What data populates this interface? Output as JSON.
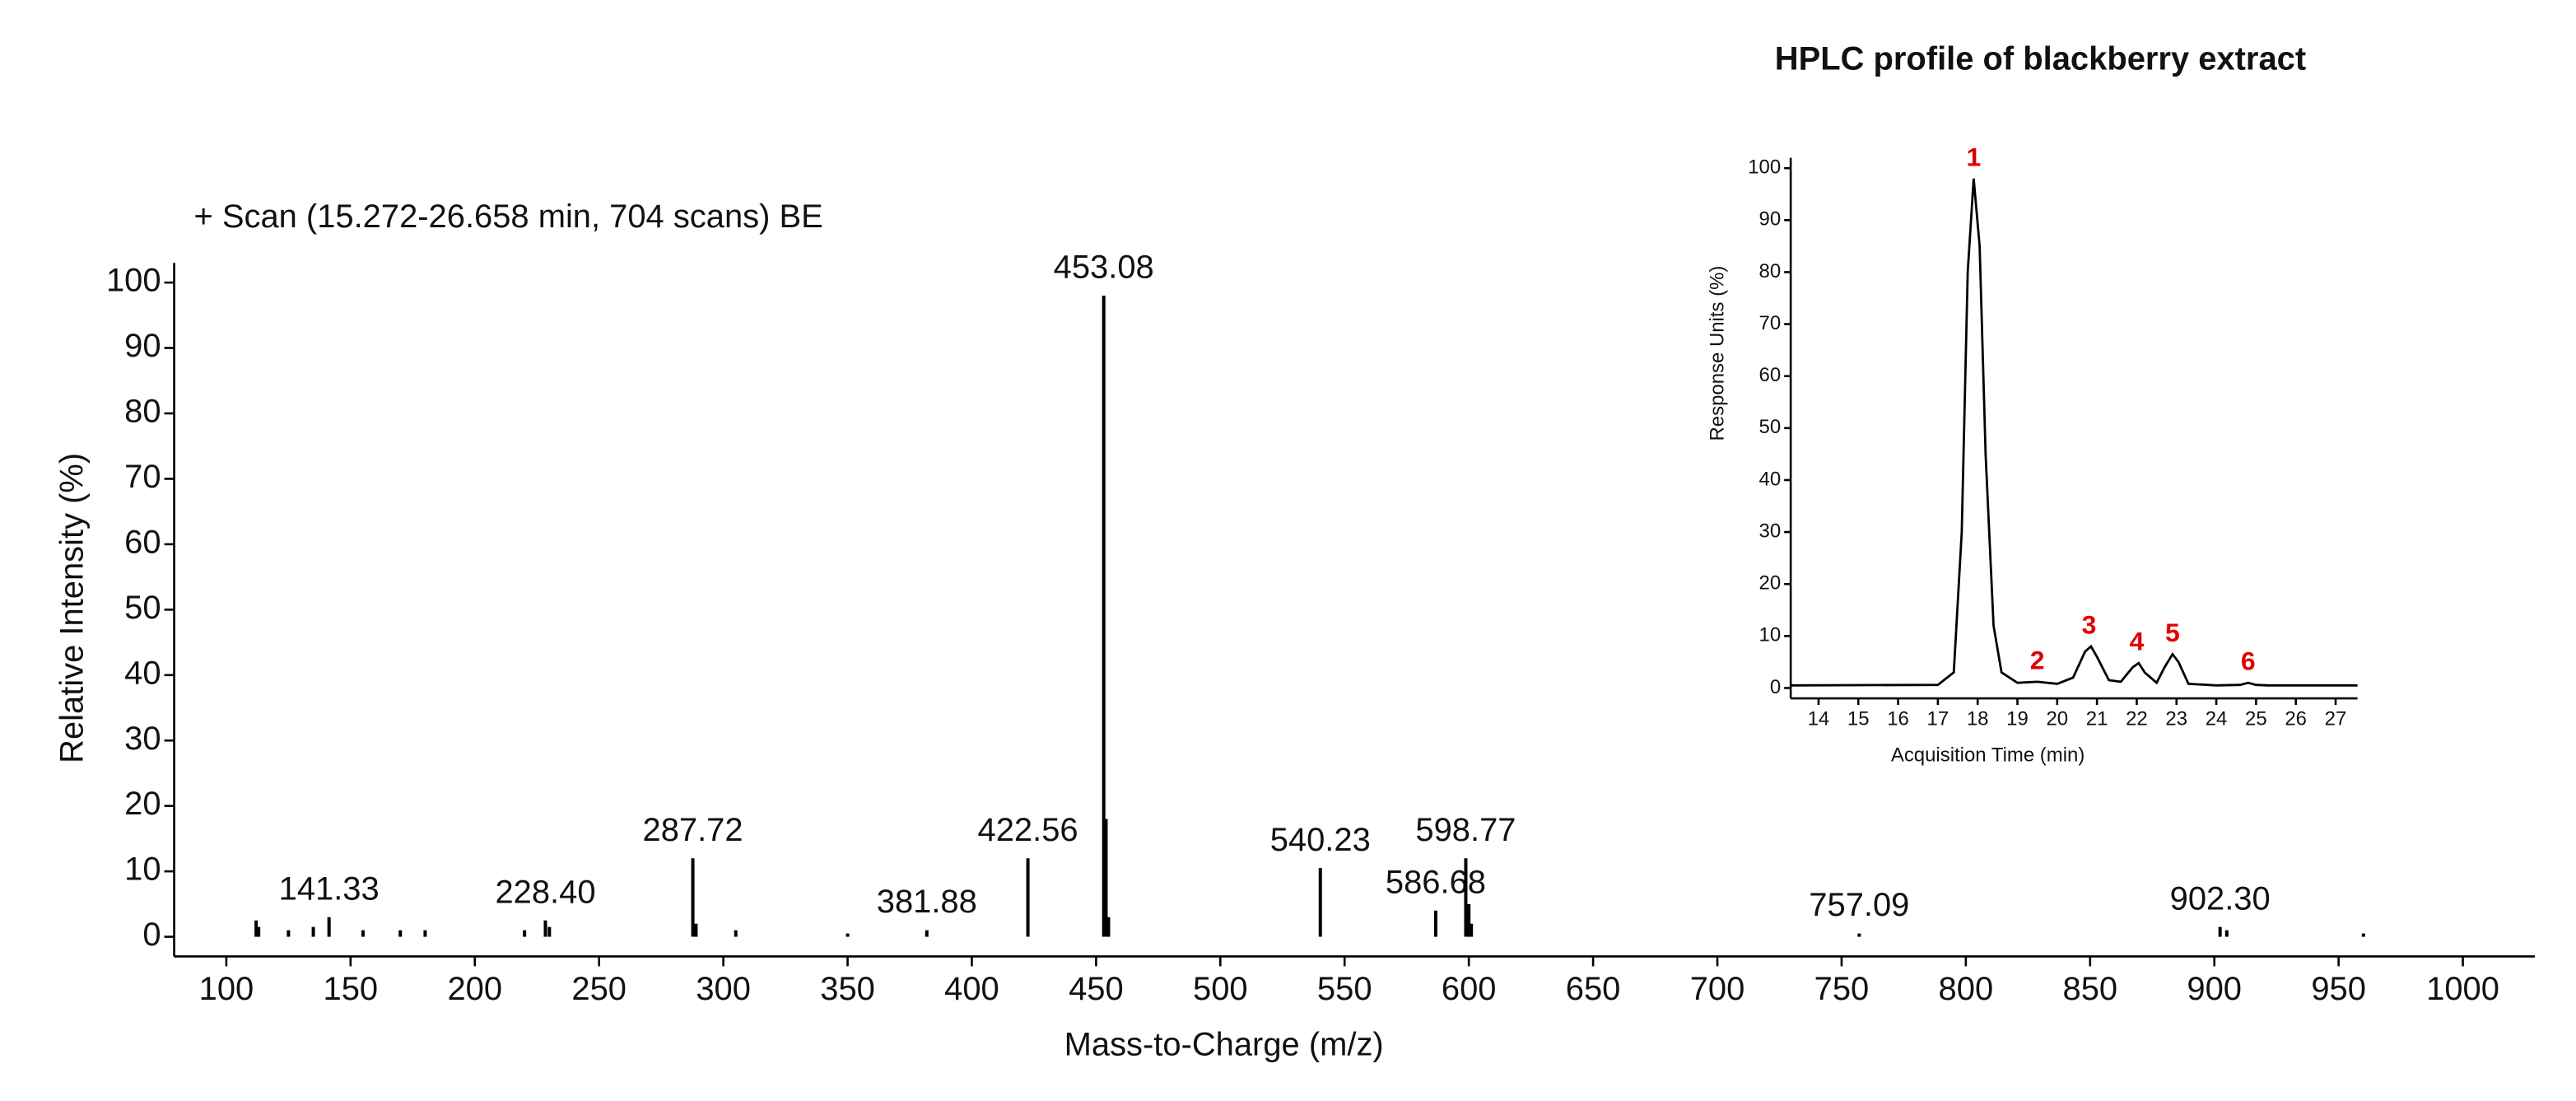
{
  "chart_data": [
    {
      "type": "stem",
      "annotation": "+ Scan (15.272-26.658 min, 704 scans) BE",
      "xlabel": "Mass-to-Charge (m/z)",
      "ylabel": "Relative Intensity (%)",
      "color": "#000000",
      "peaks": {
        "x": [
          141.33,
          228.4,
          287.72,
          381.88,
          422.56,
          453.08,
          540.23,
          586.68,
          598.77,
          757.09,
          902.3
        ],
        "values": [
          3,
          2.5,
          12,
          1,
          12,
          98,
          10.5,
          4,
          12,
          0.5,
          1.5
        ],
        "labels": [
          "141.33",
          "228.40",
          "287.72",
          "381.88",
          "422.56",
          "453.08",
          "540.23",
          "586.68",
          "598.77",
          "757.09",
          "902.30"
        ]
      },
      "minor_peaks": {
        "x": [
          112,
          113,
          125,
          135,
          155,
          170,
          180,
          220,
          230,
          289,
          305,
          350,
          454,
          455,
          600,
          601,
          905,
          960
        ],
        "values": [
          2.5,
          1.5,
          1,
          1.5,
          1,
          1,
          1,
          1,
          1.5,
          2,
          1,
          0.5,
          18,
          3,
          5,
          2,
          1,
          0.5
        ]
      },
      "xlim": [
        79,
        1029
      ],
      "ylim": [
        -3,
        103
      ],
      "xticks": [
        100,
        150,
        200,
        250,
        300,
        350,
        400,
        450,
        500,
        550,
        600,
        650,
        700,
        750,
        800,
        850,
        900,
        950,
        1000
      ],
      "yticks": [
        0,
        10,
        20,
        30,
        40,
        50,
        60,
        70,
        80,
        90,
        100
      ]
    },
    {
      "type": "line",
      "title": "HPLC profile of blackberry extract",
      "xlabel": "Acquisition Time (min)",
      "ylabel": "Response Units (%)",
      "color": "#000000",
      "annotation_color": "#e00000",
      "x": [
        13.3,
        17.0,
        17.4,
        17.6,
        17.75,
        17.9,
        18.05,
        18.2,
        18.4,
        18.6,
        19.0,
        19.5,
        20.0,
        20.4,
        20.7,
        20.85,
        21.0,
        21.3,
        21.6,
        21.9,
        22.05,
        22.2,
        22.5,
        22.7,
        22.9,
        23.05,
        23.3,
        24.0,
        24.6,
        24.8,
        25.0,
        25.3,
        27.55
      ],
      "values": [
        0.5,
        0.6,
        3,
        30,
        80,
        98,
        85,
        45,
        12,
        3,
        1,
        1.2,
        0.8,
        2,
        7,
        8,
        6,
        1.5,
        1.2,
        4,
        4.8,
        3,
        1,
        4,
        6.5,
        5,
        0.8,
        0.5,
        0.6,
        1.0,
        0.6,
        0.5,
        0.5
      ],
      "annotations": [
        "1",
        "2",
        "3",
        "4",
        "5",
        "6"
      ],
      "annotation_x": [
        17.9,
        19.5,
        20.8,
        22.0,
        22.9,
        24.8
      ],
      "xlim": [
        13.3,
        27.55
      ],
      "ylim": [
        -2,
        102
      ],
      "xticks": [
        14,
        15,
        16,
        17,
        18,
        19,
        20,
        21,
        22,
        23,
        24,
        25,
        26,
        27
      ],
      "yticks": [
        0,
        10,
        20,
        30,
        40,
        50,
        60,
        70,
        80,
        90,
        100
      ]
    }
  ]
}
